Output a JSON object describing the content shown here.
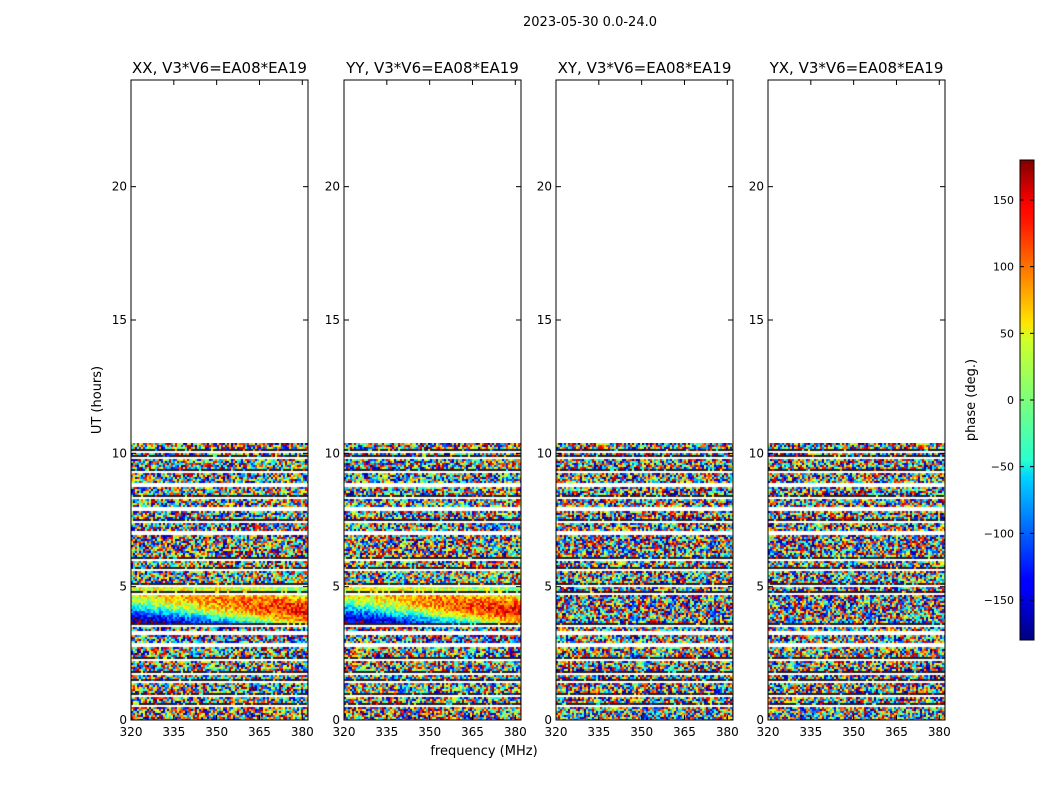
{
  "figure": {
    "suptitle": "2023-05-30 0.0-24.0"
  },
  "chart_data": [
    {
      "type": "heatmap",
      "title": "XX, V3*V6=EA08*EA19",
      "xlabel": "",
      "ylabel": "UT (hours)",
      "xlim": [
        320,
        382
      ],
      "ylim": [
        0,
        24
      ],
      "xticks": [
        320,
        335,
        350,
        365,
        380
      ],
      "yticks": [
        0,
        5,
        10,
        15,
        20
      ],
      "data_extent_hours": [
        0,
        10.4
      ],
      "pattern": "coherent"
    },
    {
      "type": "heatmap",
      "title": "YY, V3*V6=EA08*EA19",
      "xlabel": "frequency (MHz)",
      "ylabel": "",
      "xlim": [
        320,
        382
      ],
      "ylim": [
        0,
        24
      ],
      "xticks": [
        320,
        335,
        350,
        365,
        380
      ],
      "yticks": [
        0,
        5,
        10,
        15,
        20
      ],
      "data_extent_hours": [
        0,
        10.4
      ],
      "pattern": "coherent"
    },
    {
      "type": "heatmap",
      "title": "XY, V3*V6=EA08*EA19",
      "xlabel": "",
      "ylabel": "",
      "xlim": [
        320,
        382
      ],
      "ylim": [
        0,
        24
      ],
      "xticks": [
        320,
        335,
        350,
        365,
        380
      ],
      "yticks": [
        0,
        5,
        10,
        15,
        20
      ],
      "data_extent_hours": [
        0,
        10.4
      ],
      "pattern": "noise"
    },
    {
      "type": "heatmap",
      "title": "YX, V3*V6=EA08*EA19",
      "xlabel": "",
      "ylabel": "",
      "xlim": [
        320,
        382
      ],
      "ylim": [
        0,
        24
      ],
      "xticks": [
        320,
        335,
        350,
        365,
        380
      ],
      "yticks": [
        0,
        5,
        10,
        15,
        20
      ],
      "data_extent_hours": [
        0,
        10.4
      ],
      "pattern": "noise"
    }
  ],
  "colorbar": {
    "label": "phase (deg.)",
    "range": [
      -180,
      180
    ],
    "ticks": [
      150,
      100,
      50,
      0,
      -50,
      -100,
      -150
    ],
    "tick_labels": [
      "150",
      "100",
      "50",
      "0",
      "−50",
      "−100",
      "−150"
    ],
    "colormap": "jet"
  },
  "colors": {
    "background": "#ffffff",
    "axes": "#000000"
  }
}
